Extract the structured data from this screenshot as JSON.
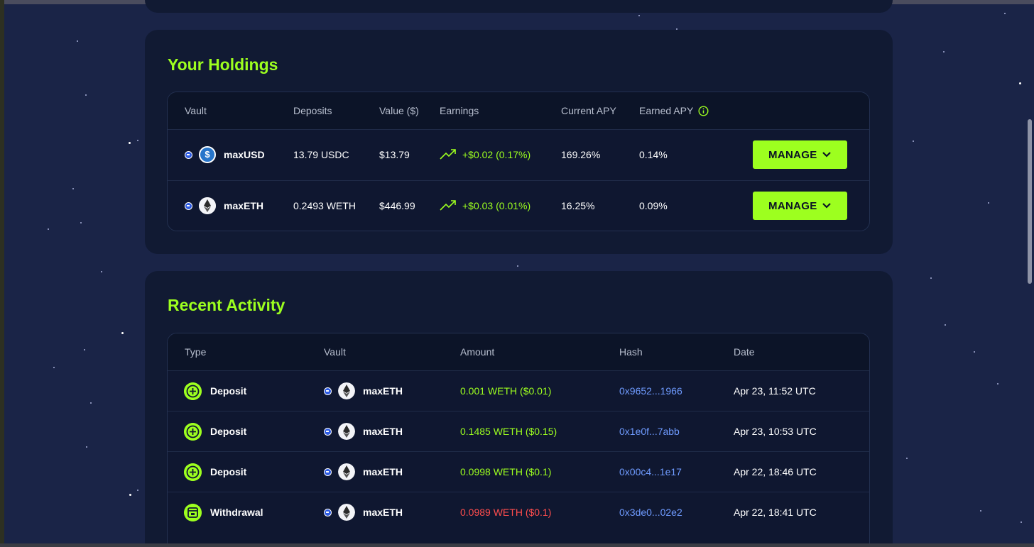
{
  "holdings": {
    "title": "Your Holdings",
    "columns": [
      "Vault",
      "Deposits",
      "Value ($)",
      "Earnings",
      "Current APY",
      "Earned APY"
    ],
    "earned_apy_info_icon": "info-circle-icon",
    "rows": [
      {
        "vault": "maxUSD",
        "icon": "usdc-icon",
        "deposit_amount": "13.79",
        "deposit_token": "USDC",
        "value": "$13.79",
        "earnings": "+$0.02 (0.17%)",
        "current_apy": "169.26%",
        "earned_apy": "0.14%",
        "action": "MANAGE"
      },
      {
        "vault": "maxETH",
        "icon": "eth-icon",
        "deposit_amount": "0.2493",
        "deposit_token": "WETH",
        "value": "$446.99",
        "earnings": "+$0.03 (0.01%)",
        "current_apy": "16.25%",
        "earned_apy": "0.09%",
        "action": "MANAGE"
      }
    ]
  },
  "activity": {
    "title": "Recent Activity",
    "columns": [
      "Type",
      "Vault",
      "Amount",
      "Hash",
      "Date"
    ],
    "rows": [
      {
        "type": "Deposit",
        "vault": "maxETH",
        "amount": "0.001 WETH ($0.01)",
        "hash": "0x9652...1966",
        "date": "Apr 23, 11:52 UTC",
        "status": "in"
      },
      {
        "type": "Deposit",
        "vault": "maxETH",
        "amount": "0.1485 WETH ($0.15)",
        "hash": "0x1e0f...7abb",
        "date": "Apr 23, 10:53 UTC",
        "status": "in"
      },
      {
        "type": "Deposit",
        "vault": "maxETH",
        "amount": "0.0998 WETH ($0.1)",
        "hash": "0x00c4...1e17",
        "date": "Apr 22, 18:46 UTC",
        "status": "in"
      },
      {
        "type": "Withdrawal",
        "vault": "maxETH",
        "amount": "0.0989 WETH ($0.1)",
        "hash": "0x3de0...02e2",
        "date": "Apr 22, 18:41 UTC",
        "status": "out"
      }
    ]
  },
  "colors": {
    "accent": "#9dff1f",
    "background": "#1a2447",
    "card": "#111a33",
    "negative": "#ff4d4d",
    "link": "#6f9bff"
  }
}
